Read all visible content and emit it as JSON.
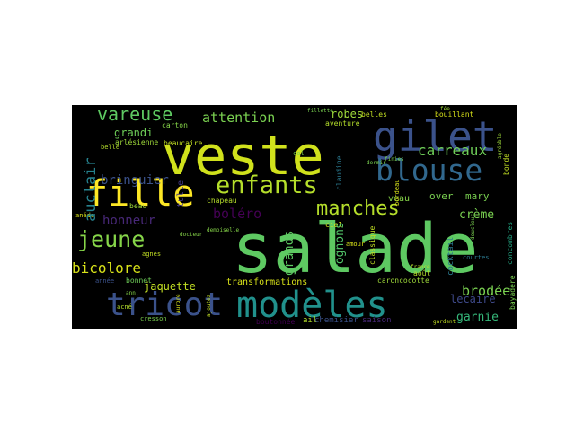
{
  "wordcloud": {
    "words": [
      {
        "text": "salade",
        "color": "#5ec962"
      },
      {
        "text": "veste",
        "color": "#d0e11c"
      },
      {
        "text": "modèles",
        "color": "#21918c"
      },
      {
        "text": "tricot",
        "color": "#3b528b"
      },
      {
        "text": "gilet",
        "color": "#3b528b"
      },
      {
        "text": "blouse",
        "color": "#31688e"
      },
      {
        "text": "fille",
        "color": "#fde725"
      },
      {
        "text": "enfants",
        "color": "#b5de2b"
      },
      {
        "text": "jeune",
        "color": "#86d549"
      },
      {
        "text": "manches",
        "color": "#b5de2b"
      },
      {
        "text": "vareuse",
        "color": "#5ec962"
      },
      {
        "text": "attention",
        "color": "#7ad151"
      },
      {
        "text": "carreaux",
        "color": "#6ece58"
      },
      {
        "text": "bicolore",
        "color": "#d8e219"
      },
      {
        "text": "auclair",
        "color": "#26828e"
      },
      {
        "text": "boléro",
        "color": "#440154"
      },
      {
        "text": "grands",
        "color": "#5ec962"
      },
      {
        "text": "brodée",
        "color": "#7ad151"
      },
      {
        "text": "bringuier",
        "color": "#3b528b"
      },
      {
        "text": "honneur",
        "color": "#482878"
      },
      {
        "text": "jaquette",
        "color": "#c2df23"
      },
      {
        "text": "grandi",
        "color": "#6ece58"
      },
      {
        "text": "crème",
        "color": "#7ad151"
      },
      {
        "text": "lecaire",
        "color": "#3e4989"
      },
      {
        "text": "garnie",
        "color": "#35b779"
      },
      {
        "text": "robes",
        "color": "#9fda3a"
      },
      {
        "text": "rognons",
        "color": "#52c569"
      },
      {
        "text": "transformations",
        "color": "#d8e219"
      },
      {
        "text": "over",
        "color": "#7ad151"
      },
      {
        "text": "mary",
        "color": "#7ad151"
      },
      {
        "text": "tulle",
        "color": "#443983"
      },
      {
        "text": "cocktail",
        "color": "#2a788e"
      },
      {
        "text": "chapeau",
        "color": "#b5de2b"
      },
      {
        "text": "veau",
        "color": "#86d549"
      },
      {
        "text": "beaucaire",
        "color": "#c2df23"
      },
      {
        "text": "arlésienne",
        "color": "#9fda3a"
      },
      {
        "text": "carton",
        "color": "#86d549"
      },
      {
        "text": "aventure",
        "color": "#b5de2b"
      },
      {
        "text": "belles",
        "color": "#c2df23"
      },
      {
        "text": "bouillant",
        "color": "#d8e219"
      },
      {
        "text": "boutonnée",
        "color": "#440154"
      },
      {
        "text": "ail",
        "color": "#b5de2b"
      },
      {
        "text": "chemisier",
        "color": "#3b528b"
      },
      {
        "text": "saison",
        "color": "#482878"
      },
      {
        "text": "août",
        "color": "#b5de2b"
      },
      {
        "text": "courtes",
        "color": "#2a788e"
      },
      {
        "text": "bayadère",
        "color": "#7ad151"
      },
      {
        "text": "concombres",
        "color": "#22a884"
      },
      {
        "text": "bonde",
        "color": "#c2df23"
      },
      {
        "text": "ciel",
        "color": "#d8e219"
      },
      {
        "text": "claudine",
        "color": "#2a788e"
      },
      {
        "text": "classique",
        "color": "#c2df23"
      },
      {
        "text": "caroncocotte",
        "color": "#9fda3a"
      },
      {
        "text": "bonnet",
        "color": "#6ece58"
      },
      {
        "text": "agnès",
        "color": "#c2df23"
      },
      {
        "text": "année",
        "color": "#3b528b"
      },
      {
        "text": "acné",
        "color": "#b5de2b"
      },
      {
        "text": "cresson",
        "color": "#7ad151"
      },
      {
        "text": "amour",
        "color": "#d8e219"
      },
      {
        "text": "col",
        "color": "#7ad151"
      },
      {
        "text": "beau",
        "color": "#9fda3a"
      },
      {
        "text": "belle",
        "color": "#b5de2b"
      },
      {
        "text": "anédo",
        "color": "#d8e219"
      },
      {
        "text": "bordeau",
        "color": "#d8e219"
      },
      {
        "text": "gardent",
        "color": "#c2df23"
      },
      {
        "text": "fillette",
        "color": "#7ad151"
      },
      {
        "text": "fée",
        "color": "#9fda3a"
      },
      {
        "text": "finies",
        "color": "#7ad151"
      },
      {
        "text": "doucleur",
        "color": "#7ad151"
      },
      {
        "text": "docteur",
        "color": "#86d549"
      },
      {
        "text": "demoiselle",
        "color": "#86d549"
      },
      {
        "text": "ajoutez",
        "color": "#c2df23"
      },
      {
        "text": "france",
        "color": "#b5de2b"
      },
      {
        "text": "dormir",
        "color": "#7ad151"
      },
      {
        "text": "ann.",
        "color": "#86d549"
      },
      {
        "text": "aurore",
        "color": "#d8e219"
      },
      {
        "text": "agréable",
        "color": "#9fda3a"
      }
    ]
  }
}
